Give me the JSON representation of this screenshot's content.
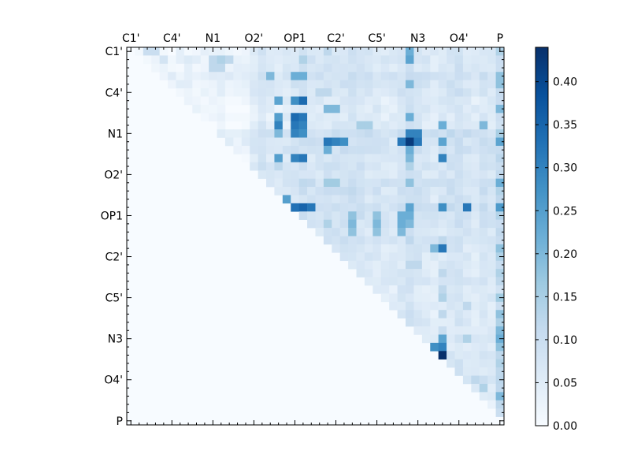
{
  "chart_data": {
    "type": "heatmap",
    "title": "",
    "xlabel": "",
    "ylabel": "",
    "n_cells": 46,
    "x_tick_labels": [
      "C1'",
      "C4'",
      "N1",
      "O2'",
      "OP1",
      "C2'",
      "C5'",
      "N3",
      "O4'",
      "P"
    ],
    "y_tick_labels": [
      "C1'",
      "C4'",
      "N1",
      "O2'",
      "OP1",
      "C2'",
      "C5'",
      "N3",
      "O4'",
      "P"
    ],
    "label_positions": [
      0,
      5,
      10,
      15,
      20,
      25,
      30,
      35,
      40,
      45
    ],
    "grid": false,
    "colormap": "Blues",
    "colormap_stops": [
      "#f7fbff",
      "#deebf7",
      "#c6dbef",
      "#9ecae1",
      "#6baed6",
      "#4292c6",
      "#2171b5",
      "#08519c",
      "#08306b"
    ],
    "colorbar": {
      "range": [
        0.0,
        0.44
      ],
      "ticks": [
        "0.00",
        "0.05",
        "0.10",
        "0.15",
        "0.20",
        "0.25",
        "0.30",
        "0.35",
        "0.40"
      ],
      "tick_values": [
        0.0,
        0.05,
        0.1,
        0.15,
        0.2,
        0.25,
        0.3,
        0.35,
        0.4
      ],
      "placement": "right"
    },
    "base_value": 0.005,
    "row_bands": [
      [
        0,
        0.03
      ],
      [
        1,
        0.04
      ],
      [
        2,
        0.035
      ],
      [
        3,
        0.06
      ],
      [
        4,
        0.05
      ],
      [
        5,
        0.04
      ],
      [
        6,
        0.02
      ],
      [
        7,
        0.02
      ],
      [
        8,
        0.015
      ],
      [
        9,
        0.02
      ],
      [
        10,
        0.08
      ],
      [
        11,
        0.06
      ],
      [
        12,
        0.06
      ],
      [
        13,
        0.03
      ],
      [
        14,
        0.05
      ],
      [
        15,
        0.04
      ],
      [
        16,
        0.07
      ],
      [
        17,
        0.06
      ],
      [
        18,
        0.04
      ],
      [
        19,
        0.07
      ],
      [
        20,
        0.06
      ],
      [
        21,
        0.05
      ],
      [
        22,
        0.04
      ],
      [
        23,
        0.05
      ],
      [
        24,
        0.03
      ],
      [
        25,
        0.03
      ],
      [
        26,
        0.02
      ],
      [
        27,
        0.03
      ],
      [
        28,
        0.03
      ],
      [
        29,
        0.02
      ],
      [
        30,
        0.02
      ],
      [
        31,
        0.02
      ],
      [
        32,
        0.02
      ],
      [
        33,
        0.02
      ],
      [
        34,
        0.02
      ],
      [
        35,
        0.03
      ],
      [
        36,
        0.02
      ],
      [
        37,
        0.03
      ],
      [
        38,
        0.03
      ],
      [
        39,
        0.02
      ],
      [
        40,
        0.03
      ],
      [
        41,
        0.03
      ],
      [
        42,
        0.02
      ],
      [
        43,
        0.01
      ],
      [
        44,
        0.01
      ],
      [
        45,
        0.0
      ]
    ],
    "col_bands": [
      [
        15,
        0.04
      ],
      [
        16,
        0.06
      ],
      [
        17,
        0.03
      ],
      [
        18,
        0.03
      ],
      [
        19,
        0.04
      ],
      [
        20,
        0.06
      ],
      [
        21,
        0.07
      ],
      [
        22,
        0.06
      ],
      [
        23,
        0.05
      ],
      [
        24,
        0.06
      ],
      [
        25,
        0.06
      ],
      [
        26,
        0.06
      ],
      [
        27,
        0.07
      ],
      [
        28,
        0.06
      ],
      [
        29,
        0.05
      ],
      [
        30,
        0.05
      ],
      [
        31,
        0.04
      ],
      [
        32,
        0.04
      ],
      [
        33,
        0.06
      ],
      [
        34,
        0.08
      ],
      [
        35,
        0.06
      ],
      [
        36,
        0.05
      ],
      [
        37,
        0.04
      ],
      [
        38,
        0.05
      ],
      [
        39,
        0.06
      ],
      [
        40,
        0.07
      ],
      [
        41,
        0.05
      ],
      [
        42,
        0.04
      ],
      [
        43,
        0.06
      ],
      [
        44,
        0.05
      ],
      [
        45,
        0.1
      ]
    ],
    "hot_cells": [
      [
        0,
        45,
        0.14
      ],
      [
        0,
        34,
        0.22
      ],
      [
        0,
        24,
        0.12
      ],
      [
        1,
        21,
        0.14
      ],
      [
        1,
        34,
        0.24
      ],
      [
        2,
        10,
        0.12
      ],
      [
        2,
        11,
        0.12
      ],
      [
        3,
        20,
        0.22
      ],
      [
        3,
        21,
        0.22
      ],
      [
        3,
        17,
        0.2
      ],
      [
        3,
        45,
        0.18
      ],
      [
        4,
        34,
        0.2
      ],
      [
        4,
        45,
        0.18
      ],
      [
        5,
        23,
        0.12
      ],
      [
        5,
        24,
        0.12
      ],
      [
        6,
        18,
        0.24
      ],
      [
        6,
        20,
        0.28
      ],
      [
        6,
        21,
        0.34
      ],
      [
        7,
        45,
        0.2
      ],
      [
        7,
        24,
        0.2
      ],
      [
        7,
        25,
        0.2
      ],
      [
        8,
        18,
        0.25
      ],
      [
        8,
        20,
        0.34
      ],
      [
        8,
        21,
        0.32
      ],
      [
        8,
        34,
        0.22
      ],
      [
        9,
        18,
        0.3
      ],
      [
        9,
        20,
        0.32
      ],
      [
        9,
        21,
        0.3
      ],
      [
        9,
        28,
        0.15
      ],
      [
        9,
        29,
        0.15
      ],
      [
        9,
        38,
        0.22
      ],
      [
        9,
        43,
        0.2
      ],
      [
        10,
        18,
        0.2
      ],
      [
        10,
        20,
        0.3
      ],
      [
        10,
        21,
        0.28
      ],
      [
        10,
        34,
        0.3
      ],
      [
        10,
        35,
        0.3
      ],
      [
        11,
        24,
        0.32
      ],
      [
        11,
        25,
        0.3
      ],
      [
        11,
        26,
        0.28
      ],
      [
        11,
        33,
        0.32
      ],
      [
        11,
        34,
        0.42
      ],
      [
        11,
        35,
        0.32
      ],
      [
        11,
        38,
        0.24
      ],
      [
        11,
        45,
        0.24
      ],
      [
        12,
        24,
        0.22
      ],
      [
        12,
        34,
        0.22
      ],
      [
        13,
        18,
        0.25
      ],
      [
        13,
        20,
        0.3
      ],
      [
        13,
        21,
        0.32
      ],
      [
        13,
        34,
        0.2
      ],
      [
        13,
        38,
        0.3
      ],
      [
        14,
        18,
        0.12
      ],
      [
        14,
        34,
        0.14
      ],
      [
        16,
        24,
        0.16
      ],
      [
        16,
        25,
        0.16
      ],
      [
        16,
        34,
        0.18
      ],
      [
        16,
        45,
        0.22
      ],
      [
        18,
        19,
        0.25
      ],
      [
        19,
        20,
        0.33
      ],
      [
        19,
        21,
        0.35
      ],
      [
        19,
        22,
        0.32
      ],
      [
        19,
        34,
        0.24
      ],
      [
        19,
        38,
        0.28
      ],
      [
        19,
        41,
        0.32
      ],
      [
        19,
        45,
        0.26
      ],
      [
        20,
        27,
        0.18
      ],
      [
        20,
        30,
        0.18
      ],
      [
        20,
        33,
        0.22
      ],
      [
        20,
        34,
        0.22
      ],
      [
        21,
        24,
        0.14
      ],
      [
        21,
        27,
        0.2
      ],
      [
        21,
        30,
        0.2
      ],
      [
        21,
        33,
        0.22
      ],
      [
        21,
        34,
        0.2
      ],
      [
        22,
        27,
        0.18
      ],
      [
        22,
        30,
        0.18
      ],
      [
        22,
        33,
        0.2
      ],
      [
        23,
        38,
        0.12
      ],
      [
        24,
        38,
        0.22
      ],
      [
        24,
        37,
        0.2
      ],
      [
        24,
        38,
        0.32
      ],
      [
        24,
        45,
        0.18
      ],
      [
        25,
        45,
        0.14
      ],
      [
        26,
        34,
        0.12
      ],
      [
        26,
        35,
        0.12
      ],
      [
        27,
        38,
        0.12
      ],
      [
        27,
        45,
        0.14
      ],
      [
        28,
        45,
        0.12
      ],
      [
        29,
        38,
        0.12
      ],
      [
        30,
        45,
        0.16
      ],
      [
        30,
        38,
        0.14
      ],
      [
        31,
        41,
        0.12
      ],
      [
        32,
        38,
        0.12
      ],
      [
        32,
        45,
        0.18
      ],
      [
        33,
        45,
        0.14
      ],
      [
        34,
        38,
        0.1
      ],
      [
        34,
        45,
        0.2
      ],
      [
        35,
        38,
        0.24
      ],
      [
        35,
        45,
        0.22
      ],
      [
        35,
        41,
        0.14
      ],
      [
        36,
        38,
        0.3
      ],
      [
        36,
        37,
        0.28
      ],
      [
        36,
        45,
        0.18
      ],
      [
        37,
        38,
        0.44
      ],
      [
        37,
        37,
        0.3
      ],
      [
        37,
        45,
        0.12
      ],
      [
        38,
        38,
        0.22
      ],
      [
        38,
        45,
        0.14
      ],
      [
        39,
        45,
        0.12
      ],
      [
        39,
        38,
        0.1
      ],
      [
        40,
        42,
        0.12
      ],
      [
        40,
        43,
        0.1
      ],
      [
        41,
        43,
        0.14
      ],
      [
        41,
        41,
        0.1
      ],
      [
        42,
        42,
        0.14
      ],
      [
        43,
        45,
        0.12
      ],
      [
        44,
        45,
        0.1
      ],
      [
        45,
        45,
        0.0
      ],
      [
        46,
        45,
        0.0
      ],
      [
        42,
        45,
        0.2
      ],
      [
        43,
        44,
        0.08
      ],
      [
        44,
        44,
        0.06
      ]
    ],
    "extra_cells": [
      [
        43,
        44,
        0.03
      ],
      [
        45,
        45,
        0.0
      ],
      [
        0,
        2,
        0.1
      ],
      [
        0,
        3,
        0.1
      ],
      [
        1,
        4,
        0.08
      ],
      [
        1,
        7,
        0.06
      ],
      [
        1,
        10,
        0.12
      ],
      [
        1,
        11,
        0.14
      ],
      [
        1,
        12,
        0.12
      ]
    ]
  }
}
